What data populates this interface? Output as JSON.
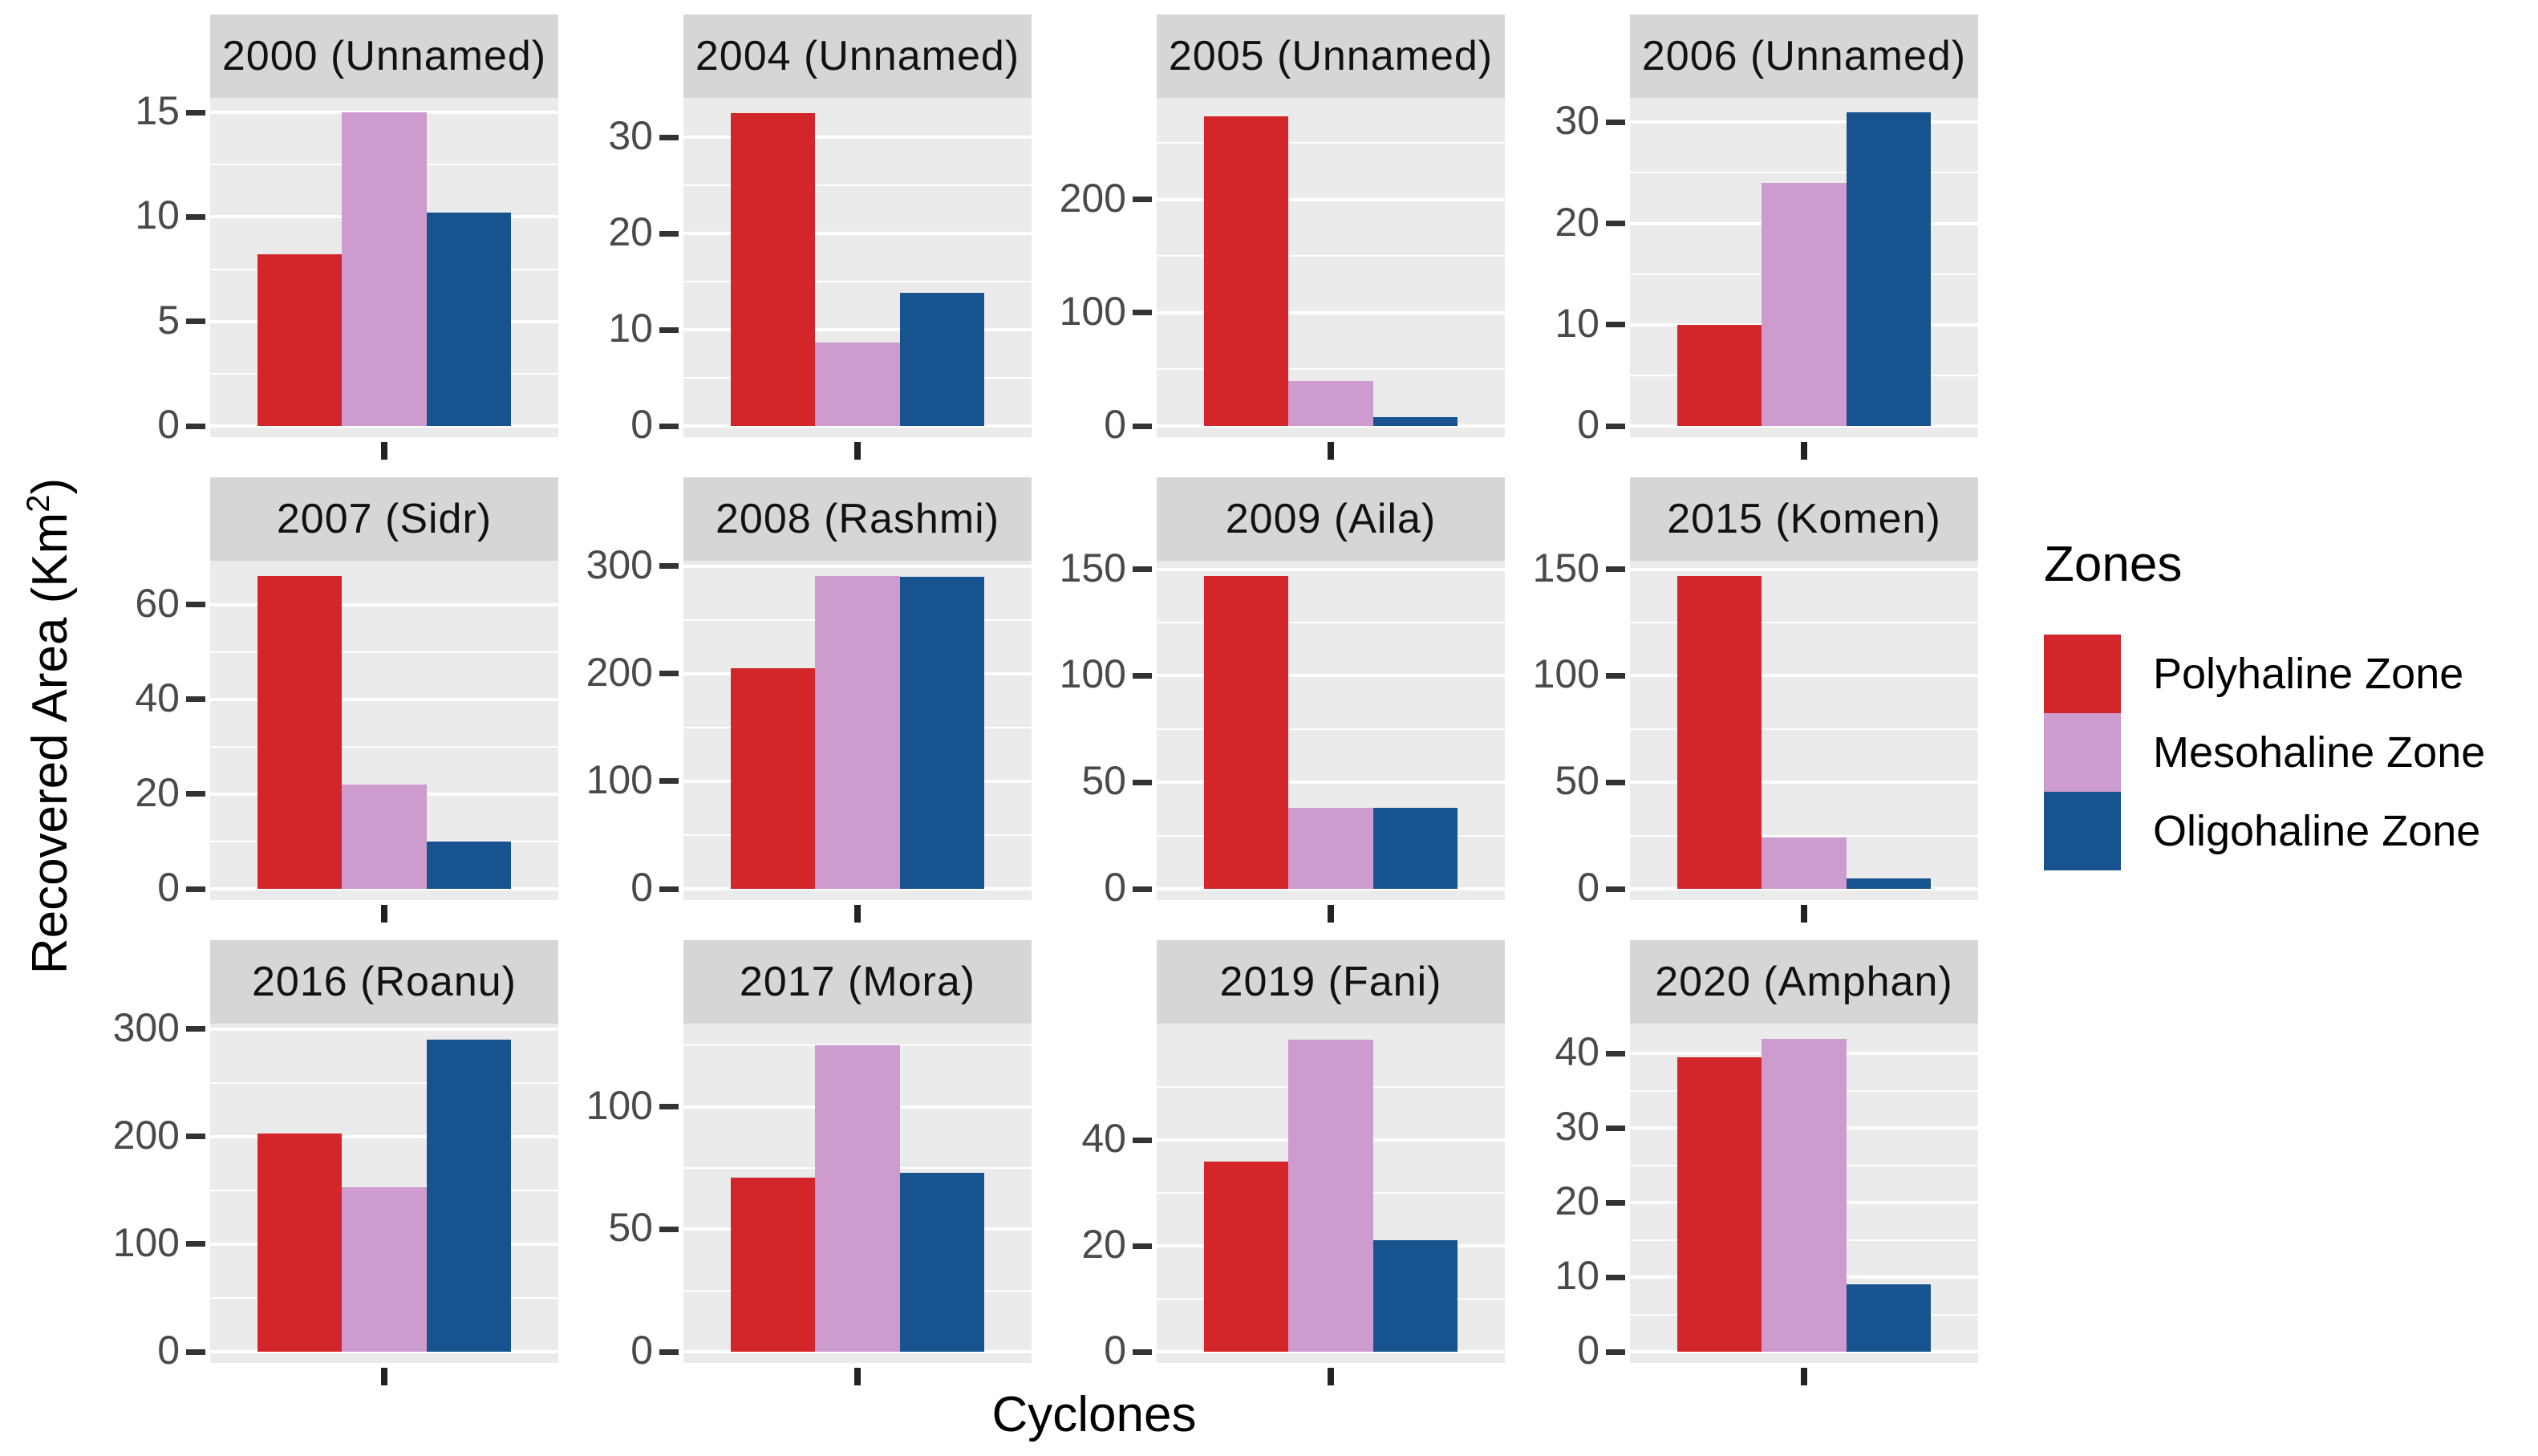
{
  "figure": {
    "x_axis_label": "Cyclones",
    "y_axis_label_base": "Recovered Area (Km",
    "y_axis_label_exponent": "2",
    "y_axis_label_suffix": ")"
  },
  "legend": {
    "title": "Zones",
    "items": [
      {
        "label": "Polyhaline Zone",
        "color": "#D2262B"
      },
      {
        "label": "Mesohaline Zone",
        "color": "#CE9BCF"
      },
      {
        "label": "Oligohaline Zone",
        "color": "#17538F"
      }
    ]
  },
  "chart_data": {
    "type": "bar",
    "layout": "facet-grid-4x3",
    "title": "",
    "xlabel": "Cyclones",
    "ylabel": "Recovered Area (Km2)",
    "grid": true,
    "legend_position": "right",
    "series_names": [
      "Polyhaline Zone",
      "Mesohaline Zone",
      "Oligohaline Zone"
    ],
    "series_colors": [
      "#D2262B",
      "#CE9BCF",
      "#17538F"
    ],
    "facets": [
      {
        "title": "2000 (Unnamed)",
        "yticks": [
          0,
          5,
          10,
          15
        ],
        "ylim_top": 15.7,
        "values": [
          8.2,
          15,
          10.2
        ]
      },
      {
        "title": "2004 (Unnamed)",
        "yticks": [
          0,
          10,
          20,
          30
        ],
        "ylim_top": 34.1,
        "values": [
          32.5,
          8.7,
          13.8
        ]
      },
      {
        "title": "2005 (Unnamed)",
        "yticks": [
          0,
          100,
          200
        ],
        "ylim_top": 290,
        "values": [
          274,
          40,
          8
        ]
      },
      {
        "title": "2006 (Unnamed)",
        "yticks": [
          0,
          10,
          20,
          30
        ],
        "ylim_top": 32.4,
        "values": [
          10,
          24,
          31
        ]
      },
      {
        "title": "2007 (Sidr)",
        "yticks": [
          0,
          20,
          40,
          60
        ],
        "ylim_top": 69.3,
        "values": [
          66,
          22,
          10
        ]
      },
      {
        "title": "2008 (Rashmi)",
        "yticks": [
          0,
          100,
          200,
          300
        ],
        "ylim_top": 305,
        "values": [
          205,
          291,
          290
        ]
      },
      {
        "title": "2009 (Aila)",
        "yticks": [
          0,
          50,
          100,
          150
        ],
        "ylim_top": 154,
        "values": [
          147,
          38,
          38
        ]
      },
      {
        "title": "2015 (Komen)",
        "yticks": [
          0,
          50,
          100,
          150
        ],
        "ylim_top": 154,
        "values": [
          147,
          24,
          5
        ]
      },
      {
        "title": "2016 (Roanu)",
        "yticks": [
          0,
          100,
          200,
          300
        ],
        "ylim_top": 305,
        "values": [
          203,
          153,
          290
        ]
      },
      {
        "title": "2017 (Mora)",
        "yticks": [
          0,
          50,
          100
        ],
        "ylim_top": 134,
        "values": [
          71,
          125,
          73
        ]
      },
      {
        "title": "2019 (Fani)",
        "yticks": [
          0,
          20,
          40
        ],
        "ylim_top": 62,
        "values": [
          36,
          59,
          21
        ]
      },
      {
        "title": "2020 (Amphan)",
        "yticks": [
          0,
          10,
          20,
          30,
          40
        ],
        "ylim_top": 44,
        "values": [
          39.5,
          42,
          9
        ]
      }
    ]
  },
  "theme": {
    "panel_bg": "#EBEBEB",
    "strip_bg": "#D6D6D6",
    "grid_color": "#FFFFFF",
    "tick_label_color": "#4A4A4A",
    "text_color": "#000000"
  }
}
